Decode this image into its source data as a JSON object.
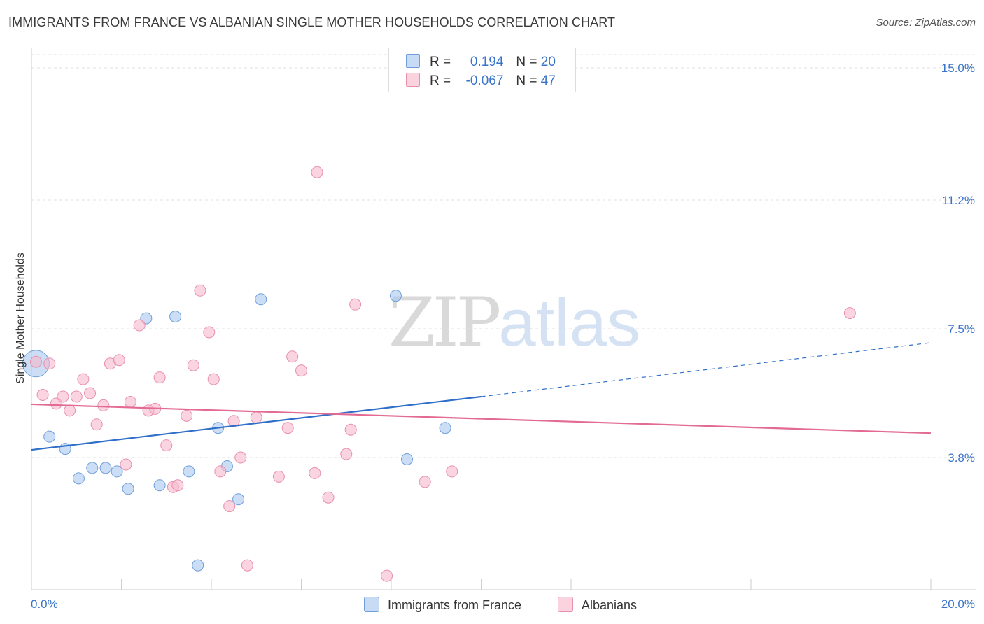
{
  "title": "IMMIGRANTS FROM FRANCE VS ALBANIAN SINGLE MOTHER HOUSEHOLDS CORRELATION CHART",
  "source": "Source: ZipAtlas.com",
  "watermark": {
    "zip": "ZIP",
    "atlas": "atlas"
  },
  "legend": {
    "rows": [
      {
        "r_label": "R =",
        "r_value": "0.194",
        "n_label": "N =",
        "n_value": "20",
        "color": "#a9c8f0"
      },
      {
        "r_label": "R =",
        "r_value": "-0.067",
        "n_label": "N =",
        "n_value": "47",
        "color": "#f6b8cc"
      }
    ]
  },
  "bottom_legend": [
    {
      "label": "Immigrants from France",
      "color": "#a9c8f0"
    },
    {
      "label": "Albanians",
      "color": "#f6b8cc"
    }
  ],
  "chart_data": {
    "type": "scatter",
    "title": "IMMIGRANTS FROM FRANCE VS ALBANIAN SINGLE MOTHER HOUSEHOLDS CORRELATION CHART",
    "xlabel": "",
    "ylabel": "Single Mother Households",
    "xlim": [
      0,
      20
    ],
    "ylim": [
      0,
      15.5
    ],
    "x_tick_labels": [
      "0.0%",
      "20.0%"
    ],
    "y_ticks": [
      3.8,
      7.5,
      11.2,
      15.0
    ],
    "y_tick_labels": [
      "3.8%",
      "7.5%",
      "11.2%",
      "15.0%"
    ],
    "grid": "horizontal dashed",
    "legend_position": "top-center",
    "colors": {
      "france": "#2f6fc9",
      "albanians": "#e26a93",
      "axis_label": "#3a74c9"
    },
    "series": [
      {
        "name": "Immigrants from France",
        "color": "#a9c8f0",
        "stroke": "#6f9fdb",
        "points": [
          {
            "x": 0.1,
            "y": 6.5,
            "big": true
          },
          {
            "x": 0.4,
            "y": 4.4
          },
          {
            "x": 0.75,
            "y": 4.05
          },
          {
            "x": 1.05,
            "y": 3.2
          },
          {
            "x": 1.35,
            "y": 3.5
          },
          {
            "x": 1.65,
            "y": 3.5
          },
          {
            "x": 1.9,
            "y": 3.4
          },
          {
            "x": 2.15,
            "y": 2.9
          },
          {
            "x": 2.55,
            "y": 7.8
          },
          {
            "x": 2.85,
            "y": 3.0
          },
          {
            "x": 3.2,
            "y": 7.85
          },
          {
            "x": 3.5,
            "y": 3.4
          },
          {
            "x": 3.7,
            "y": 0.7
          },
          {
            "x": 4.15,
            "y": 4.65
          },
          {
            "x": 4.35,
            "y": 3.55
          },
          {
            "x": 4.6,
            "y": 2.6
          },
          {
            "x": 5.1,
            "y": 8.35
          },
          {
            "x": 8.1,
            "y": 8.45
          },
          {
            "x": 8.35,
            "y": 3.75
          },
          {
            "x": 9.2,
            "y": 4.65
          }
        ],
        "trend": {
          "x0": 0,
          "y0": 4.02,
          "x1": 10,
          "y1": 5.55,
          "dash_to_x": 20,
          "dash_to_y": 7.1
        }
      },
      {
        "name": "Albanians",
        "color": "#f6b8cc",
        "stroke": "#e890ad",
        "points": [
          {
            "x": 0.1,
            "y": 6.55
          },
          {
            "x": 0.25,
            "y": 5.6
          },
          {
            "x": 0.4,
            "y": 6.5
          },
          {
            "x": 0.55,
            "y": 5.35
          },
          {
            "x": 0.7,
            "y": 5.55
          },
          {
            "x": 0.85,
            "y": 5.15
          },
          {
            "x": 1.0,
            "y": 5.55
          },
          {
            "x": 1.15,
            "y": 6.05
          },
          {
            "x": 1.3,
            "y": 5.65
          },
          {
            "x": 1.45,
            "y": 4.75
          },
          {
            "x": 1.6,
            "y": 5.3
          },
          {
            "x": 1.75,
            "y": 6.5
          },
          {
            "x": 1.95,
            "y": 6.6
          },
          {
            "x": 2.1,
            "y": 3.6
          },
          {
            "x": 2.2,
            "y": 5.4
          },
          {
            "x": 2.4,
            "y": 7.6
          },
          {
            "x": 2.6,
            "y": 5.15
          },
          {
            "x": 2.75,
            "y": 5.2
          },
          {
            "x": 2.85,
            "y": 6.1
          },
          {
            "x": 3.0,
            "y": 4.15
          },
          {
            "x": 3.15,
            "y": 2.95
          },
          {
            "x": 3.25,
            "y": 3.0
          },
          {
            "x": 3.45,
            "y": 5.0
          },
          {
            "x": 3.6,
            "y": 6.45
          },
          {
            "x": 3.75,
            "y": 8.6
          },
          {
            "x": 3.95,
            "y": 7.4
          },
          {
            "x": 4.05,
            "y": 6.05
          },
          {
            "x": 4.2,
            "y": 3.4
          },
          {
            "x": 4.4,
            "y": 2.4
          },
          {
            "x": 4.5,
            "y": 4.85
          },
          {
            "x": 4.65,
            "y": 3.8
          },
          {
            "x": 4.8,
            "y": 0.7
          },
          {
            "x": 5.0,
            "y": 4.95
          },
          {
            "x": 5.5,
            "y": 3.25
          },
          {
            "x": 5.7,
            "y": 4.65
          },
          {
            "x": 5.8,
            "y": 6.7
          },
          {
            "x": 6.0,
            "y": 6.3
          },
          {
            "x": 6.3,
            "y": 3.35
          },
          {
            "x": 6.35,
            "y": 12.0
          },
          {
            "x": 6.6,
            "y": 2.65
          },
          {
            "x": 7.0,
            "y": 3.9
          },
          {
            "x": 7.2,
            "y": 8.2
          },
          {
            "x": 7.1,
            "y": 4.6
          },
          {
            "x": 7.9,
            "y": 0.4
          },
          {
            "x": 8.75,
            "y": 3.1
          },
          {
            "x": 9.35,
            "y": 3.4
          },
          {
            "x": 18.2,
            "y": 7.95
          }
        ],
        "trend": {
          "x0": 0,
          "y0": 5.33,
          "x1": 20,
          "y1": 4.5
        }
      }
    ]
  }
}
